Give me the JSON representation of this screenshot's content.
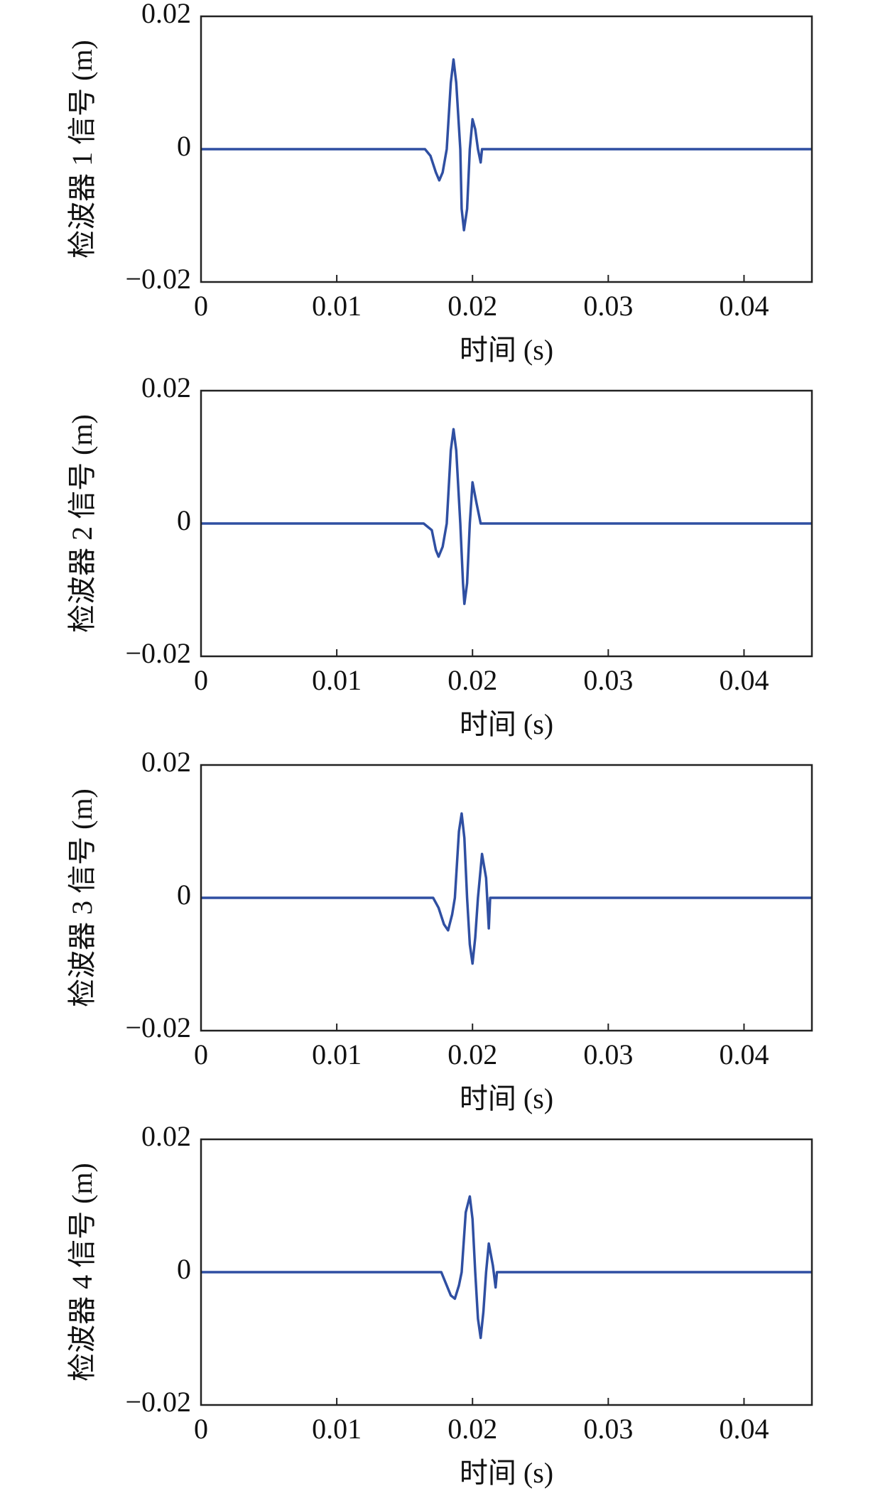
{
  "chart_data": [
    {
      "type": "line",
      "xlabel": "时间 (s)",
      "ylabel": "检波器 1 信号 (m)",
      "color": "#2f4fa2",
      "xlim": [
        0,
        0.045
      ],
      "ylim": [
        -0.02,
        0.02
      ],
      "xticks": [
        0,
        0.01,
        0.02,
        0.03,
        0.04
      ],
      "yticks": [
        {
          "value": -0.02,
          "label": "−0.02"
        },
        0,
        0.02
      ],
      "x": [
        0,
        0.0165,
        0.0169,
        0.0173,
        0.01755,
        0.0178,
        0.0181,
        0.0184,
        0.0186,
        0.0188,
        0.0191,
        0.0192,
        0.01937,
        0.0196,
        0.0198,
        0.02,
        0.0202,
        0.0204,
        0.0206,
        0.0207,
        0.045
      ],
      "values": [
        0,
        0,
        -0.001,
        -0.0035,
        -0.0047,
        -0.0035,
        0,
        0.01,
        0.0135,
        0.01,
        0,
        -0.009,
        -0.0122,
        -0.009,
        0,
        0.0045,
        0.003,
        0,
        -0.002,
        0,
        0
      ]
    },
    {
      "type": "line",
      "xlabel": "时间 (s)",
      "ylabel": "检波器 2 信号 (m)",
      "color": "#2f4fa2",
      "xlim": [
        0,
        0.045
      ],
      "ylim": [
        -0.02,
        0.02
      ],
      "xticks": [
        0,
        0.01,
        0.02,
        0.03,
        0.04
      ],
      "yticks": [
        {
          "value": -0.02,
          "label": "−0.02"
        },
        0,
        0.02
      ],
      "x": [
        0,
        0.0164,
        0.017,
        0.0173,
        0.0175,
        0.0178,
        0.0181,
        0.0184,
        0.0186,
        0.0188,
        0.0191,
        0.0193,
        0.0194,
        0.0196,
        0.0198,
        0.02,
        0.0203,
        0.0206,
        0.045
      ],
      "values": [
        0,
        0,
        -0.001,
        -0.004,
        -0.005,
        -0.0035,
        0,
        0.011,
        0.0142,
        0.011,
        0,
        -0.009,
        -0.0121,
        -0.009,
        0,
        0.0062,
        0.003,
        0,
        0
      ]
    },
    {
      "type": "line",
      "xlabel": "时间 (s)",
      "ylabel": "检波器 3 信号 (m)",
      "color": "#2f4fa2",
      "xlim": [
        0,
        0.045
      ],
      "ylim": [
        -0.02,
        0.02
      ],
      "xticks": [
        0,
        0.01,
        0.02,
        0.03,
        0.04
      ],
      "yticks": [
        {
          "value": -0.02,
          "label": "−0.02"
        },
        0,
        0.02
      ],
      "x": [
        0,
        0.0171,
        0.0175,
        0.0179,
        0.0182,
        0.0185,
        0.0187,
        0.019,
        0.0192,
        0.0194,
        0.0196,
        0.0198,
        0.02,
        0.0202,
        0.0204,
        0.0207,
        0.021,
        0.0212,
        0.0213,
        0.045
      ],
      "values": [
        0,
        0,
        -0.0015,
        -0.004,
        -0.0049,
        -0.0025,
        0,
        0.01,
        0.0127,
        0.009,
        0,
        -0.007,
        -0.0099,
        -0.006,
        0,
        0.0066,
        0.003,
        -0.0046,
        0,
        0
      ]
    },
    {
      "type": "line",
      "xlabel": "时间 (s)",
      "ylabel": "检波器 4 信号 (m)",
      "color": "#2f4fa2",
      "xlim": [
        0,
        0.045
      ],
      "ylim": [
        -0.02,
        0.02
      ],
      "xticks": [
        0,
        0.01,
        0.02,
        0.03,
        0.04
      ],
      "yticks": [
        {
          "value": -0.02,
          "label": "−0.02"
        },
        0,
        0.02
      ],
      "x": [
        0,
        0.0177,
        0.018,
        0.0184,
        0.0187,
        0.019,
        0.0192,
        0.0195,
        0.0198,
        0.02,
        0.0202,
        0.0204,
        0.0206,
        0.0208,
        0.021,
        0.0212,
        0.0215,
        0.0217,
        0.0218,
        0.045
      ],
      "values": [
        0,
        0,
        -0.0015,
        -0.0035,
        -0.004,
        -0.002,
        0,
        0.009,
        0.0114,
        0.008,
        0,
        -0.007,
        -0.0099,
        -0.006,
        0,
        0.0043,
        0.001,
        -0.0023,
        0,
        0
      ]
    }
  ]
}
